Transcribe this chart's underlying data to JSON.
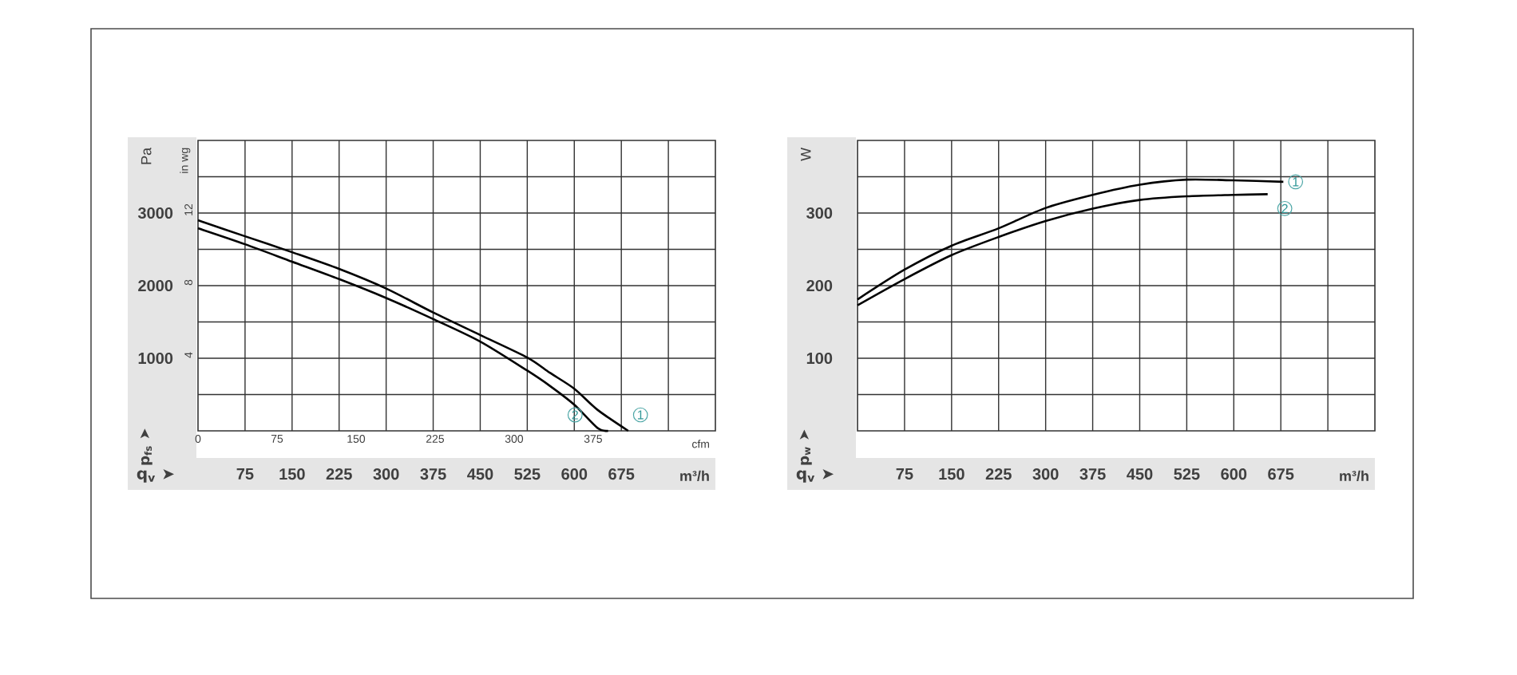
{
  "chart_data": [
    {
      "type": "line",
      "xlabel": "q$_{v}$ ➤",
      "ylabel": "p$_{fs}$ ➤",
      "y2label": "in wg",
      "x2label": "cfm",
      "annotations": [
        "Pa",
        "m³/h"
      ],
      "xlim": [
        0,
        825
      ],
      "xticks": [
        75,
        150,
        225,
        300,
        375,
        450,
        525,
        600,
        675,
        {
          "value": 750,
          "label": null
        }
      ],
      "ylim": [
        0,
        4000
      ],
      "yticks": [
        {
          "value": 500,
          "label": null
        },
        1000,
        {
          "value": 1500,
          "label": null
        },
        2000,
        {
          "value": 2500,
          "label": null
        },
        3000,
        {
          "value": 3500,
          "label": null
        }
      ],
      "y2lim": [
        0,
        16
      ],
      "y2ticks": [
        4,
        8,
        12
      ],
      "x2lim": [
        0,
        491
      ],
      "x2ticks": [
        0,
        75,
        150,
        225,
        300,
        375
      ],
      "grid": true,
      "series": [
        {
          "name": "1",
          "color": "#000000",
          "x": [
            0,
            75,
            150,
            225,
            300,
            375,
            450,
            525,
            561,
            600,
            637,
            686
          ],
          "values": [
            2900,
            2680,
            2460,
            2230,
            1960,
            1630,
            1320,
            1010,
            800,
            580,
            290,
            0
          ]
        },
        {
          "name": "2",
          "color": "#000000",
          "x": [
            0,
            75,
            150,
            225,
            300,
            375,
            450,
            525,
            561,
            600,
            637,
            654
          ],
          "values": [
            2790,
            2570,
            2330,
            2090,
            1830,
            1540,
            1230,
            830,
            620,
            360,
            40,
            0
          ]
        }
      ]
    },
    {
      "type": "line",
      "xlabel": "q$_{v}$ ➤",
      "ylabel": "p$_{w}$ ➤",
      "annotations": [
        "W",
        "m³/h"
      ],
      "xlim": [
        0,
        825
      ],
      "xticks": [
        75,
        150,
        225,
        300,
        375,
        450,
        525,
        600,
        675,
        {
          "value": 750,
          "label": null
        }
      ],
      "ylim": [
        0,
        400
      ],
      "yticks": [
        {
          "value": 50,
          "label": null
        },
        100,
        {
          "value": 150,
          "label": null
        },
        200,
        {
          "value": 250,
          "label": null
        },
        300,
        {
          "value": 350,
          "label": null
        }
      ],
      "grid": true,
      "series": [
        {
          "name": "1",
          "color": "#000000",
          "x": [
            0,
            75,
            150,
            225,
            300,
            375,
            450,
            525,
            600,
            679
          ],
          "values": [
            181,
            222,
            255,
            279,
            307,
            325,
            339,
            346,
            345,
            343
          ]
        },
        {
          "name": "2",
          "color": "#000000",
          "x": [
            0,
            75,
            150,
            225,
            300,
            375,
            450,
            525,
            600,
            654
          ],
          "values": [
            173,
            209,
            242,
            267,
            289,
            306,
            318,
            323,
            325,
            326
          ]
        }
      ]
    }
  ]
}
